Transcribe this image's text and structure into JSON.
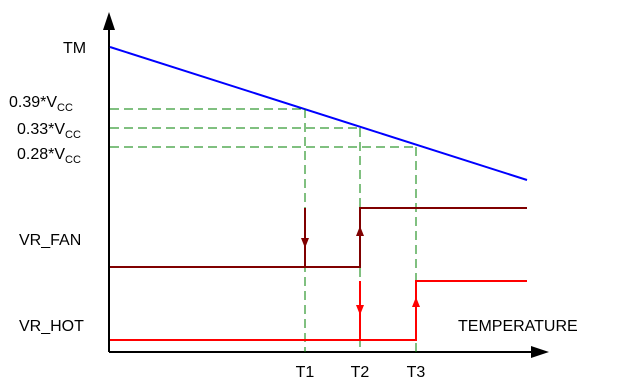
{
  "labels": {
    "tm": "TM",
    "vr_fan": "VR_FAN",
    "vr_hot": "VR_HOT",
    "x_axis": "TEMPERATURE"
  },
  "thresholds": [
    {
      "coef": "0.39*V",
      "sub": "CC"
    },
    {
      "coef": "0.33*V",
      "sub": "CC"
    },
    {
      "coef": "0.28*V",
      "sub": "CC"
    }
  ],
  "ticks": [
    "T1",
    "T2",
    "T3"
  ],
  "colors": {
    "tm_line": "#0000ff",
    "guide": "#008000",
    "vr_fan": "#800000",
    "vr_hot": "#ff0000",
    "axis": "#000000"
  }
}
